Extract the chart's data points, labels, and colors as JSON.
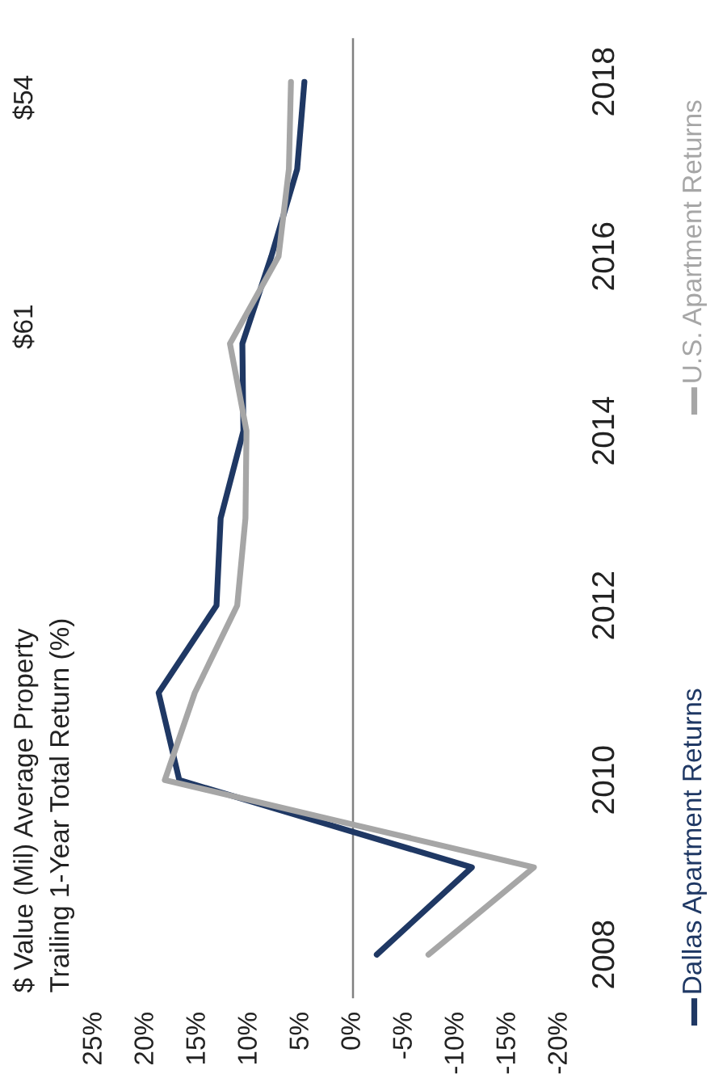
{
  "chart_data": {
    "type": "line",
    "orientation": "horizontal",
    "title": "Trailing 1-Year Total Return (%)",
    "annotations": [
      "$ Value (Mil) Average Property",
      "$61",
      "$54"
    ],
    "categories": [
      "2018",
      null,
      "2016",
      null,
      "2014",
      null,
      "2012",
      null,
      "2010",
      null,
      "2008"
    ],
    "series": [
      {
        "name": "Dallas Apartment Returns",
        "color": "#1f3864",
        "values": [
          4.7,
          5.4,
          7.9,
          10.7,
          10.6,
          12.8,
          13.2,
          18.8,
          16.8,
          -11.5,
          -2.3
        ]
      },
      {
        "name": "U.S. Apartment Returns",
        "color": "#a6a6a6",
        "values": [
          6.0,
          6.2,
          7.2,
          11.9,
          10.3,
          10.4,
          11.2,
          15.3,
          18.2,
          -17.5,
          -7.3
        ]
      }
    ],
    "xlim": [
      25,
      -20
    ],
    "xticks": [
      {
        "value": 25,
        "label": "25%"
      },
      {
        "value": 20,
        "label": "20%"
      },
      {
        "value": 15,
        "label": "15%"
      },
      {
        "value": 10,
        "label": "10%"
      },
      {
        "value": 5,
        "label": "5%"
      },
      {
        "value": 0,
        "label": "0%"
      },
      {
        "value": -5,
        "label": "-5%"
      },
      {
        "value": -10,
        "label": "-10%"
      },
      {
        "value": -15,
        "label": "-15%"
      },
      {
        "value": -20,
        "label": "-20%"
      }
    ],
    "ref_lines": [
      {
        "axis": "x",
        "value": 0,
        "color": "#808080"
      }
    ],
    "grid": false,
    "legend": "right",
    "line_style": "solid",
    "marker": "none"
  }
}
